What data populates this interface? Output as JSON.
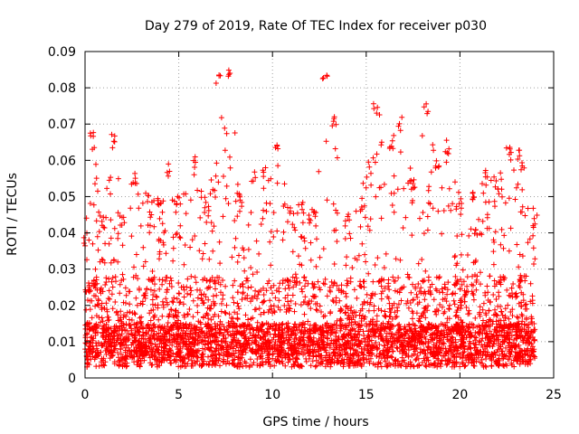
{
  "chart_data": {
    "type": "scatter",
    "title": "Day 279 of 2019, Rate Of TEC Index for receiver p030",
    "xlabel": "GPS time / hours",
    "ylabel": "ROTI / TECUs",
    "xlim": [
      0,
      25
    ],
    "ylim": [
      0,
      0.09
    ],
    "xticks": [
      "0",
      "5",
      "10",
      "15",
      "20",
      "25"
    ],
    "yticks": [
      "0",
      "0.01",
      "0.02",
      "0.03",
      "0.04",
      "0.05",
      "0.06",
      "0.07",
      "0.08",
      "0.09"
    ],
    "grid": true,
    "marker": "+",
    "color": "#ff0000",
    "series_summary": {
      "n_points_approx": 4200,
      "x_range": [
        0,
        24
      ],
      "baseline_y": 0.009,
      "envelope": [
        [
          0,
          0.04
        ],
        [
          0.4,
          0.068
        ],
        [
          1,
          0.045
        ],
        [
          1.5,
          0.068
        ],
        [
          2,
          0.045
        ],
        [
          2.6,
          0.057
        ],
        [
          3.3,
          0.052
        ],
        [
          4,
          0.05
        ],
        [
          4.5,
          0.059
        ],
        [
          5,
          0.05
        ],
        [
          5.8,
          0.062
        ],
        [
          6.5,
          0.05
        ],
        [
          7.1,
          0.084
        ],
        [
          7.7,
          0.086
        ],
        [
          8.3,
          0.052
        ],
        [
          9,
          0.057
        ],
        [
          9.6,
          0.058
        ],
        [
          10.2,
          0.065
        ],
        [
          10.9,
          0.047
        ],
        [
          11.5,
          0.05
        ],
        [
          12.2,
          0.047
        ],
        [
          12.8,
          0.086
        ],
        [
          13.3,
          0.073
        ],
        [
          14,
          0.045
        ],
        [
          14.7,
          0.05
        ],
        [
          15.5,
          0.077
        ],
        [
          16.3,
          0.066
        ],
        [
          16.8,
          0.072
        ],
        [
          17.5,
          0.055
        ],
        [
          18.2,
          0.076
        ],
        [
          18.8,
          0.06
        ],
        [
          19.3,
          0.066
        ],
        [
          20,
          0.05
        ],
        [
          20.8,
          0.052
        ],
        [
          21.4,
          0.058
        ],
        [
          22,
          0.055
        ],
        [
          22.6,
          0.065
        ],
        [
          23.2,
          0.063
        ],
        [
          24,
          0.045
        ]
      ]
    }
  }
}
